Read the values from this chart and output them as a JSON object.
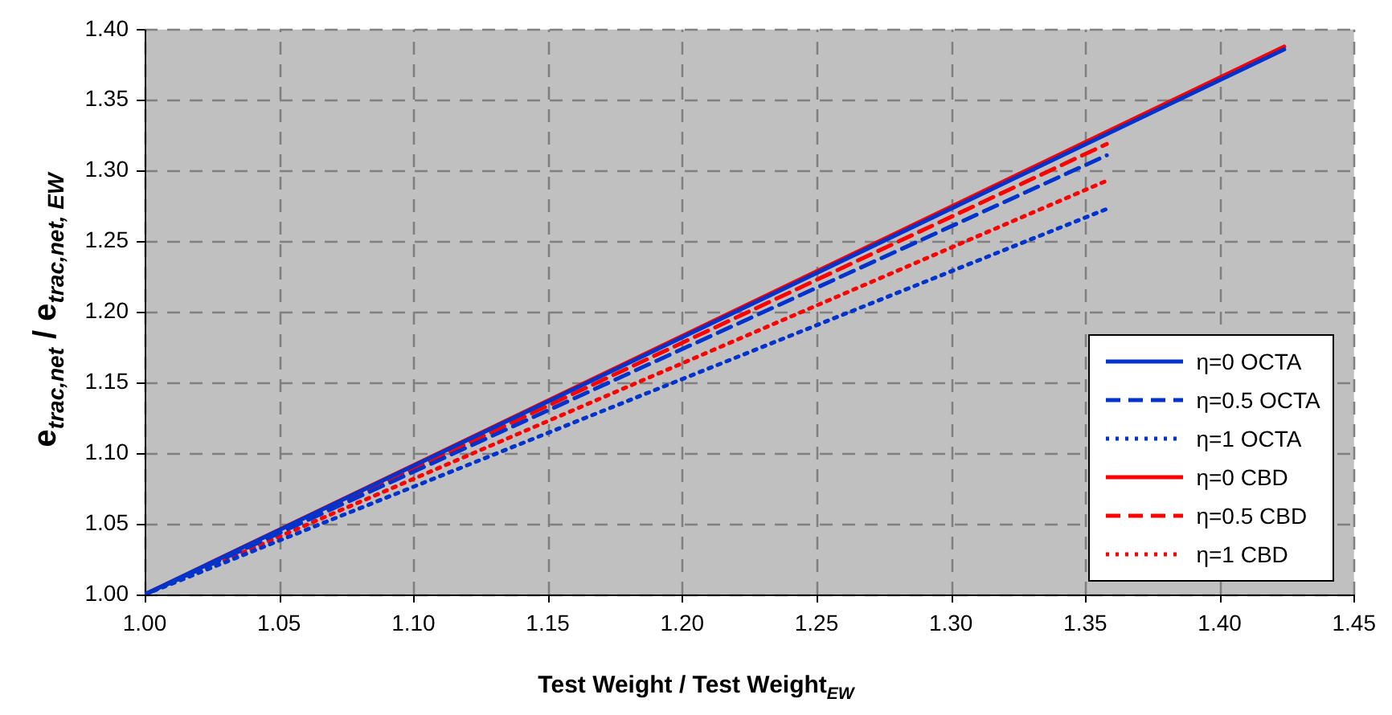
{
  "chart_data": {
    "type": "line",
    "xlabel": "Test Weight / Test Weight$_{EW}$",
    "ylabel": "e$_{trac,net}$ / e$_{trac,net, EW}$",
    "xlim": [
      1.0,
      1.45
    ],
    "xticks": [
      {
        "value": 1.0,
        "label": "1.00"
      },
      1.05,
      {
        "value": 1.1,
        "label": "1.10"
      },
      1.15,
      {
        "value": 1.2,
        "label": "1.20"
      },
      1.25,
      {
        "value": 1.3,
        "label": "1.30"
      },
      1.35,
      {
        "value": 1.4,
        "label": "1.40"
      },
      1.45
    ],
    "ylim": [
      1.0,
      1.4
    ],
    "yticks": [
      {
        "value": 1.0,
        "label": "1.00"
      },
      1.05,
      {
        "value": 1.1,
        "label": "1.10"
      },
      1.15,
      {
        "value": 1.2,
        "label": "1.20"
      },
      1.25,
      {
        "value": 1.3,
        "label": "1.30"
      },
      1.35,
      {
        "value": 1.4,
        "label": "1.40"
      }
    ],
    "grid": true,
    "legend": "bottom right",
    "marker": "none",
    "series": [
      {
        "name": "η=0 OCTA",
        "color": "#0033cc",
        "line_style": "solid",
        "x": [
          1.0,
          1.424
        ],
        "values": [
          1.0,
          1.386
        ]
      },
      {
        "name": "η=0.5 OCTA",
        "color": "#0033cc",
        "line_style": "dashed",
        "x": [
          1.0,
          1.358
        ],
        "values": [
          1.0,
          1.311
        ]
      },
      {
        "name": "η=1 OCTA",
        "color": "#0033cc",
        "line_style": "dotted",
        "x": [
          1.0,
          1.358
        ],
        "values": [
          1.0,
          1.273
        ]
      },
      {
        "name": "η=0 CBD",
        "color": "#ff0000",
        "line_style": "solid",
        "x": [
          1.0,
          1.424
        ],
        "values": [
          1.0,
          1.388
        ]
      },
      {
        "name": "η=0.5 CBD",
        "color": "#ff0000",
        "line_style": "dashed",
        "x": [
          1.0,
          1.358
        ],
        "values": [
          1.0,
          1.319
        ]
      },
      {
        "name": "η=1 CBD",
        "color": "#ff0000",
        "line_style": "dotted",
        "x": [
          1.0,
          1.358
        ],
        "values": [
          1.0,
          1.293
        ]
      }
    ]
  }
}
